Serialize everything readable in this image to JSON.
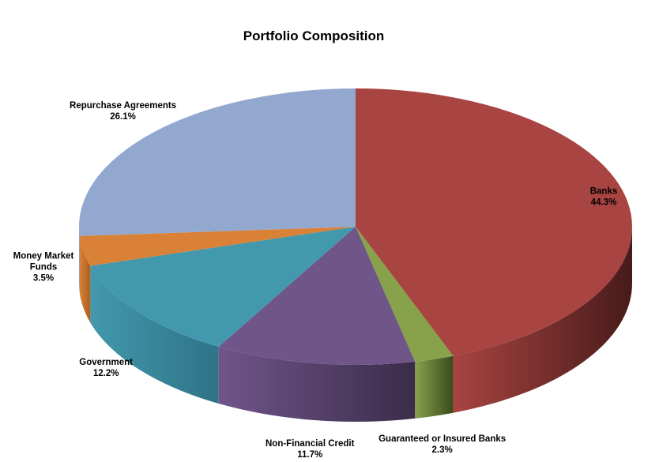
{
  "chart_data": {
    "type": "pie",
    "title": "Portfolio Composition",
    "slices": [
      {
        "label": "Banks",
        "label_lines": [
          "Banks"
        ],
        "value": 44.3,
        "display": "44.3%",
        "color": "#a84441",
        "dark": "#471b1a"
      },
      {
        "label": "Guaranteed or Insured Banks",
        "label_lines": [
          "Guaranteed or Insured Banks"
        ],
        "value": 2.3,
        "display": "2.3%",
        "color": "#87a24b",
        "dark": "#3a4a1c"
      },
      {
        "label": "Non-Financial Credit",
        "label_lines": [
          "Non-Financial Credit"
        ],
        "value": 11.7,
        "display": "11.7%",
        "color": "#705589",
        "dark": "#3b2c4a"
      },
      {
        "label": "Government",
        "label_lines": [
          "Government"
        ],
        "value": 12.2,
        "display": "12.2%",
        "color": "#4298ad",
        "dark": "#2f7387"
      },
      {
        "label": "Money Market Funds",
        "label_lines": [
          "Money Market",
          "Funds"
        ],
        "value": 3.5,
        "display": "3.5%",
        "color": "#da8138",
        "dark": "#a8601f"
      },
      {
        "label": "Repurchase Agreements",
        "label_lines": [
          "Repurchase Agreements"
        ],
        "value": 26.1,
        "display": "26.1%",
        "color": "#93a8cf",
        "dark": "#6e84ad"
      }
    ],
    "legend": "none",
    "style": "3d-pie"
  }
}
